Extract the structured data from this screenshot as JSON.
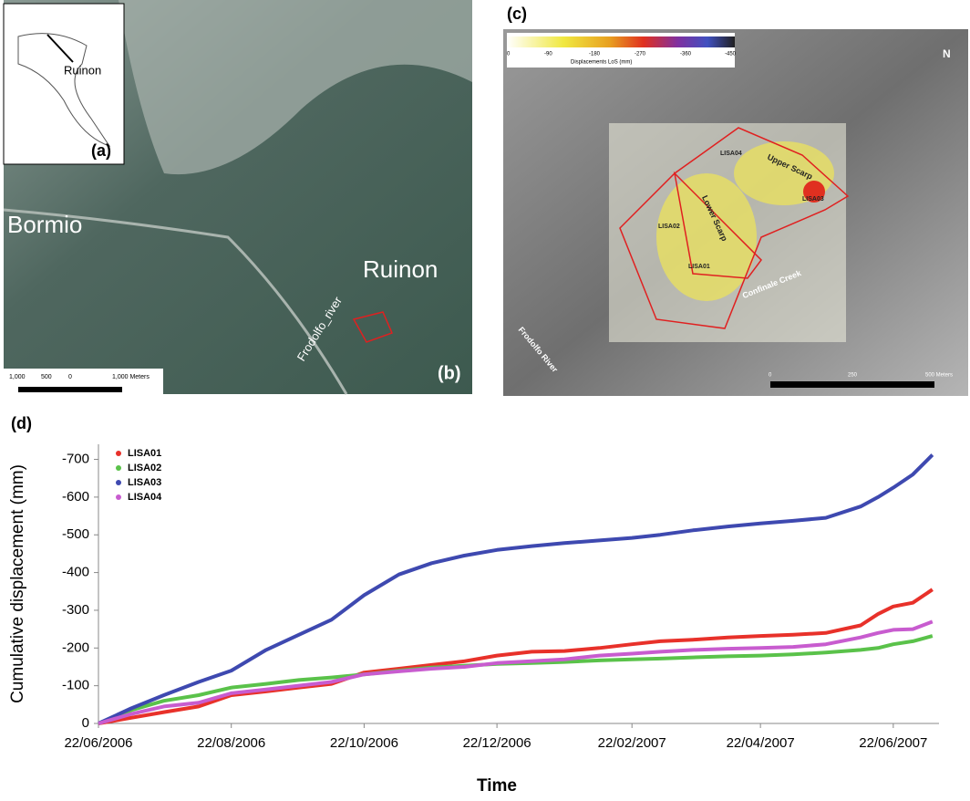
{
  "inset_a": {
    "label": "Ruinon",
    "panel": "(a)"
  },
  "map_b": {
    "panel": "(b)",
    "labels": [
      "Bormio",
      "Ruinon",
      "Frodolfo_river"
    ],
    "scale": [
      "1,000",
      "500",
      "0",
      "1,000 Meters"
    ]
  },
  "map_c": {
    "panel": "(c)",
    "colorbar_title": "Displacements LoS (mm)",
    "colorbar_ticks": [
      "0",
      "-90",
      "-180",
      "-270",
      "-360",
      "-450"
    ],
    "labels": [
      "LISA04",
      "Upper Scarp",
      "LISA03",
      "LISA02",
      "Lower Scarp",
      "LISA01",
      "Confinale Creek",
      "Frodolfo River",
      "N"
    ],
    "scale": [
      "0",
      "250",
      "500 Meters"
    ]
  },
  "chart_data": {
    "type": "line",
    "panel": "(d)",
    "x_label": "Time",
    "y_label": "Cumulative displacement (mm)",
    "x": [
      "2006-06-22",
      "2006-07-07",
      "2006-07-22",
      "2006-08-07",
      "2006-08-22",
      "2006-09-07",
      "2006-09-22",
      "2006-10-07",
      "2006-10-22",
      "2006-11-07",
      "2006-11-22",
      "2006-12-07",
      "2006-12-22",
      "2007-01-07",
      "2007-01-22",
      "2007-02-07",
      "2007-02-22",
      "2007-03-07",
      "2007-03-22",
      "2007-04-07",
      "2007-04-22",
      "2007-05-07",
      "2007-05-22",
      "2007-06-07",
      "2007-06-15",
      "2007-06-22",
      "2007-07-01",
      "2007-07-10"
    ],
    "series": [
      {
        "name": "LISA01",
        "color": "#e8312a",
        "values": [
          0,
          -15,
          -30,
          -45,
          -75,
          -85,
          -95,
          -105,
          -135,
          -145,
          -155,
          -165,
          -180,
          -190,
          -192,
          -200,
          -210,
          -218,
          -222,
          -228,
          -232,
          -235,
          -240,
          -260,
          -290,
          -310,
          -320,
          -355
        ]
      },
      {
        "name": "LISA02",
        "color": "#5ac24a",
        "values": [
          0,
          -35,
          -60,
          -75,
          -95,
          -105,
          -115,
          -122,
          -130,
          -140,
          -148,
          -153,
          -158,
          -160,
          -163,
          -167,
          -170,
          -172,
          -175,
          -178,
          -180,
          -183,
          -188,
          -195,
          -200,
          -210,
          -218,
          -232
        ]
      },
      {
        "name": "LISA03",
        "color": "#3e49b0",
        "values": [
          0,
          -40,
          -75,
          -110,
          -140,
          -195,
          -235,
          -275,
          -340,
          -395,
          -425,
          -445,
          -460,
          -470,
          -478,
          -485,
          -492,
          -500,
          -512,
          -522,
          -530,
          -537,
          -545,
          -575,
          -600,
          -625,
          -660,
          -712
        ]
      },
      {
        "name": "LISA04",
        "color": "#c85ccf",
        "values": [
          0,
          -25,
          -45,
          -55,
          -80,
          -90,
          -100,
          -110,
          -130,
          -138,
          -145,
          -150,
          -160,
          -165,
          -170,
          -180,
          -185,
          -190,
          -195,
          -198,
          -200,
          -203,
          -210,
          -228,
          -240,
          -248,
          -250,
          -270
        ]
      }
    ],
    "xlim": [
      "2006-06-22",
      "2007-07-13"
    ],
    "xticks": [
      {
        "value": "2006-06-22",
        "label": "22/06/2006"
      },
      {
        "value": "2006-08-22",
        "label": "22/08/2006"
      },
      {
        "value": "2006-10-22",
        "label": "22/10/2006"
      },
      {
        "value": "2006-12-22",
        "label": "22/12/2006"
      },
      {
        "value": "2007-02-22",
        "label": "22/02/2007"
      },
      {
        "value": "2007-04-22",
        "label": "22/04/2007"
      },
      {
        "value": "2007-06-22",
        "label": "22/06/2007"
      }
    ],
    "ylim": [
      0,
      -740
    ],
    "yticks": [
      0,
      -100,
      -200,
      -300,
      -400,
      -500,
      -600,
      -700
    ],
    "legend": "upper-left"
  }
}
